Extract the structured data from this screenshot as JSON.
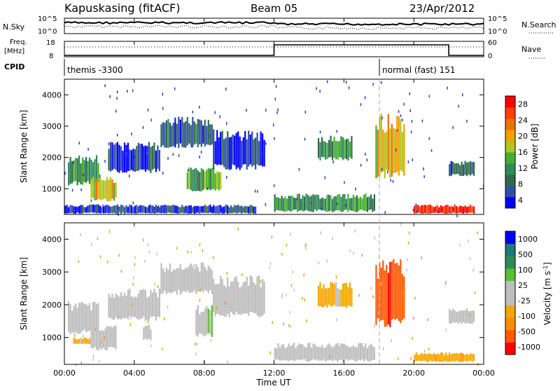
{
  "header": {
    "station": "Kapuskasing (fitACF)",
    "beam": "Beam 05",
    "date": "23/Apr/2012"
  },
  "status_panel": {
    "nsky_label": "N.Sky",
    "nsearch_label": "N.Search",
    "freq_label": "Freq.",
    "freq_unit": "[MHz]",
    "nave_label": "Nave",
    "cpid_label": "CPID",
    "nsky_ticks": [
      "10^5",
      "10^0"
    ],
    "nsearch_ticks": [
      "10^5",
      "10^0"
    ],
    "freq_ticks": [
      "18",
      "8"
    ],
    "nave_ticks": [
      "60",
      "0"
    ],
    "cpid_segments": [
      {
        "label": "themis -3300",
        "start_hour": 0
      },
      {
        "label": "normal (fast) 151",
        "start_hour": 18
      }
    ],
    "freq_steps": [
      {
        "hour": 0,
        "level": 0.1
      },
      {
        "hour": 12,
        "level": 0.85
      },
      {
        "hour": 18,
        "level": 0.85
      },
      {
        "hour": 22,
        "level": 0.1
      }
    ]
  },
  "x_axis": {
    "label": "Time UT",
    "ticks": [
      "00:00",
      "04:00",
      "08:00",
      "12:00",
      "16:00",
      "20:00",
      "00:00"
    ],
    "tick_hours": [
      0,
      4,
      8,
      12,
      16,
      20,
      24
    ]
  },
  "colors": {
    "power": [
      "#0000ff",
      "#2f4fa8",
      "#2e6b4a",
      "#2e8b57",
      "#44b02c",
      "#b5c41a",
      "#f0a000",
      "#f07000",
      "#ff4000",
      "#ff0000"
    ],
    "velocity": [
      "#ff0000",
      "#ff5a00",
      "#ff8c00",
      "#f4a700",
      "#bebebe",
      "#bebebe",
      "#55c030",
      "#2e8b57",
      "#1f7a7a",
      "#0000ff"
    ]
  },
  "chart_data": [
    {
      "type": "heatmap",
      "title": "",
      "ylabel": "Slant Range [km]",
      "xlabel": "",
      "xlim": [
        0,
        24
      ],
      "ylim": [
        180,
        4500
      ],
      "yticks": [
        1000,
        2000,
        3000,
        4000
      ],
      "colorbar": {
        "label": "Power [dB]",
        "ticks": [
          "28",
          "24",
          "20",
          "16",
          "12",
          "8",
          "4"
        ],
        "range": [
          0,
          30
        ]
      },
      "regions": [
        {
          "t": [
            0.2,
            2.0
          ],
          "r": [
            1100,
            2100
          ],
          "value": 10
        },
        {
          "t": [
            1.5,
            3.0
          ],
          "r": [
            600,
            1400
          ],
          "value": 18
        },
        {
          "t": [
            2.5,
            5.5
          ],
          "r": [
            1500,
            2500
          ],
          "value": 4
        },
        {
          "t": [
            5.5,
            8.5
          ],
          "r": [
            2300,
            3300
          ],
          "value": 6
        },
        {
          "t": [
            7.0,
            9.0
          ],
          "r": [
            900,
            1700
          ],
          "value": 12
        },
        {
          "t": [
            8.5,
            11.5
          ],
          "r": [
            1600,
            2900
          ],
          "value": 4
        },
        {
          "t": [
            12.0,
            17.8
          ],
          "r": [
            250,
            850
          ],
          "value": 10
        },
        {
          "t": [
            14.5,
            16.5
          ],
          "r": [
            1900,
            2700
          ],
          "value": 10
        },
        {
          "t": [
            17.8,
            19.5
          ],
          "r": [
            1300,
            3400
          ],
          "value": 18
        },
        {
          "t": [
            20.0,
            23.5
          ],
          "r": [
            200,
            500
          ],
          "value": 28
        },
        {
          "t": [
            22.0,
            23.5
          ],
          "r": [
            1400,
            1900
          ],
          "value": 6
        },
        {
          "t": [
            0.0,
            11.0
          ],
          "r": [
            200,
            500
          ],
          "value": 4
        }
      ]
    },
    {
      "type": "heatmap",
      "title": "",
      "ylabel": "Slant Range [km]",
      "xlabel": "Time UT",
      "xlim": [
        0,
        24
      ],
      "ylim": [
        180,
        4500
      ],
      "yticks": [
        1000,
        2000,
        3000,
        4000
      ],
      "colorbar": {
        "label": "Velocity [m s^-1]",
        "ticks": [
          "1000",
          "500",
          "100",
          "25",
          "-25",
          "-100",
          "-500",
          "-1000"
        ],
        "range": [
          -1200,
          1200
        ]
      },
      "regions": [
        {
          "t": [
            0.2,
            2.0
          ],
          "r": [
            1100,
            2100
          ],
          "value": 0
        },
        {
          "t": [
            0.5,
            1.5
          ],
          "r": [
            800,
            1000
          ],
          "value": -300
        },
        {
          "t": [
            1.5,
            3.0
          ],
          "r": [
            600,
            1400
          ],
          "value": 0
        },
        {
          "t": [
            2.5,
            5.5
          ],
          "r": [
            1500,
            2500
          ],
          "value": 0
        },
        {
          "t": [
            5.5,
            8.5
          ],
          "r": [
            2300,
            3300
          ],
          "value": 0
        },
        {
          "t": [
            4.5,
            5.0
          ],
          "r": [
            900,
            1400
          ],
          "value": 120
        },
        {
          "t": [
            7.5,
            8.5
          ],
          "r": [
            1000,
            2000
          ],
          "value": 200
        },
        {
          "t": [
            8.5,
            11.5
          ],
          "r": [
            1600,
            2900
          ],
          "value": 0
        },
        {
          "t": [
            12.0,
            17.8
          ],
          "r": [
            250,
            850
          ],
          "value": 0
        },
        {
          "t": [
            14.5,
            16.5
          ],
          "r": [
            1900,
            2700
          ],
          "value": -300
        },
        {
          "t": [
            17.8,
            19.5
          ],
          "r": [
            1300,
            3400
          ],
          "value": -900
        },
        {
          "t": [
            20.0,
            23.5
          ],
          "r": [
            250,
            550
          ],
          "value": -400
        },
        {
          "t": [
            22.0,
            23.5
          ],
          "r": [
            1400,
            1900
          ],
          "value": 0
        }
      ]
    }
  ]
}
